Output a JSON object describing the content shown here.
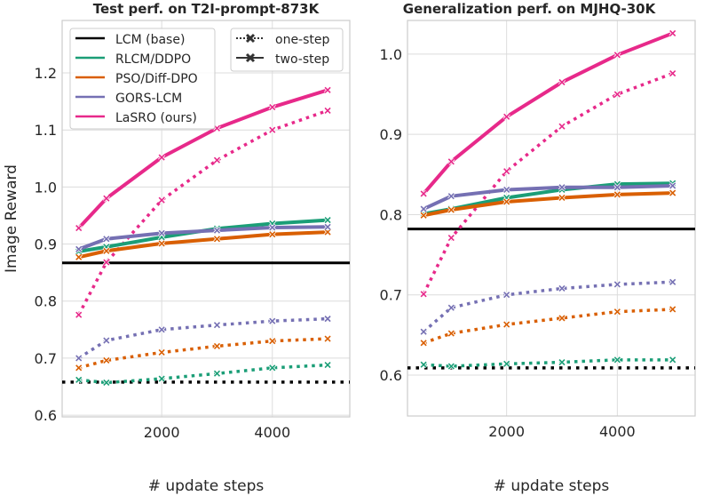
{
  "chart_data": [
    {
      "type": "line",
      "title": "Test perf. on T2I-prompt-873K",
      "xlabel": "# update steps",
      "ylabel": "Image Reward",
      "x": [
        500,
        1000,
        2000,
        3000,
        4000,
        5000
      ],
      "xlim": [
        200,
        5400
      ],
      "ylim": [
        0.597,
        1.292
      ],
      "xticks": [
        2000,
        4000
      ],
      "yticks": [
        0.6,
        0.7,
        0.8,
        0.9,
        1.0,
        1.1,
        1.2
      ],
      "grid": true,
      "legend_placement": "top-left",
      "baseline": {
        "name": "LCM (base)",
        "two_step": 0.867,
        "one_step": 0.658
      },
      "series": [
        {
          "name": "RLCM/DDPO",
          "color": "#1b9e77",
          "two_step": [
            0.887,
            0.895,
            0.912,
            0.927,
            0.936,
            0.942
          ],
          "one_step": [
            0.662,
            0.657,
            0.664,
            0.673,
            0.683,
            0.688
          ]
        },
        {
          "name": "PSO/Diff-DPO",
          "color": "#d95f02",
          "two_step": [
            0.877,
            0.888,
            0.901,
            0.909,
            0.917,
            0.921
          ],
          "one_step": [
            0.683,
            0.696,
            0.71,
            0.721,
            0.73,
            0.734
          ]
        },
        {
          "name": "GORS-LCM",
          "color": "#7570b3",
          "two_step": [
            0.891,
            0.909,
            0.919,
            0.924,
            0.929,
            0.93
          ],
          "one_step": [
            0.7,
            0.731,
            0.75,
            0.758,
            0.765,
            0.769
          ]
        },
        {
          "name": "LaSRO (ours)",
          "color": "#e7298a",
          "two_step": [
            0.928,
            0.98,
            1.052,
            1.103,
            1.14,
            1.17
          ],
          "one_step": [
            0.776,
            0.868,
            0.977,
            1.047,
            1.1,
            1.134
          ]
        }
      ]
    },
    {
      "type": "line",
      "title": "Generalization perf. on MJHQ-30K",
      "xlabel": "# update steps",
      "ylabel": "",
      "x": [
        500,
        1000,
        2000,
        3000,
        4000,
        5000
      ],
      "xlim": [
        209,
        5406
      ],
      "ylim": [
        0.549,
        1.042
      ],
      "xticks": [
        2000,
        4000
      ],
      "yticks": [
        0.6,
        0.7,
        0.8,
        0.9,
        1.0
      ],
      "grid": true,
      "baseline": {
        "name": "LCM (base)",
        "two_step": 0.782,
        "one_step": 0.609
      },
      "series": [
        {
          "name": "RLCM/DDPO",
          "color": "#1b9e77",
          "two_step": [
            0.801,
            0.807,
            0.821,
            0.831,
            0.838,
            0.839
          ],
          "one_step": [
            0.613,
            0.611,
            0.614,
            0.616,
            0.619,
            0.619
          ]
        },
        {
          "name": "PSO/Diff-DPO",
          "color": "#d95f02",
          "two_step": [
            0.799,
            0.806,
            0.816,
            0.821,
            0.825,
            0.827
          ],
          "one_step": [
            0.64,
            0.652,
            0.663,
            0.671,
            0.679,
            0.682
          ]
        },
        {
          "name": "GORS-LCM",
          "color": "#7570b3",
          "two_step": [
            0.807,
            0.823,
            0.831,
            0.834,
            0.834,
            0.836
          ],
          "one_step": [
            0.654,
            0.684,
            0.7,
            0.708,
            0.713,
            0.716
          ]
        },
        {
          "name": "LaSRO (ours)",
          "color": "#e7298a",
          "two_step": [
            0.826,
            0.866,
            0.922,
            0.965,
            0.999,
            1.026
          ],
          "one_step": [
            0.701,
            0.771,
            0.854,
            0.91,
            0.95,
            0.976
          ]
        }
      ]
    }
  ],
  "style_legend": {
    "one_step": "one-step",
    "two_step": "two-step"
  },
  "baseline_color": "#000000"
}
